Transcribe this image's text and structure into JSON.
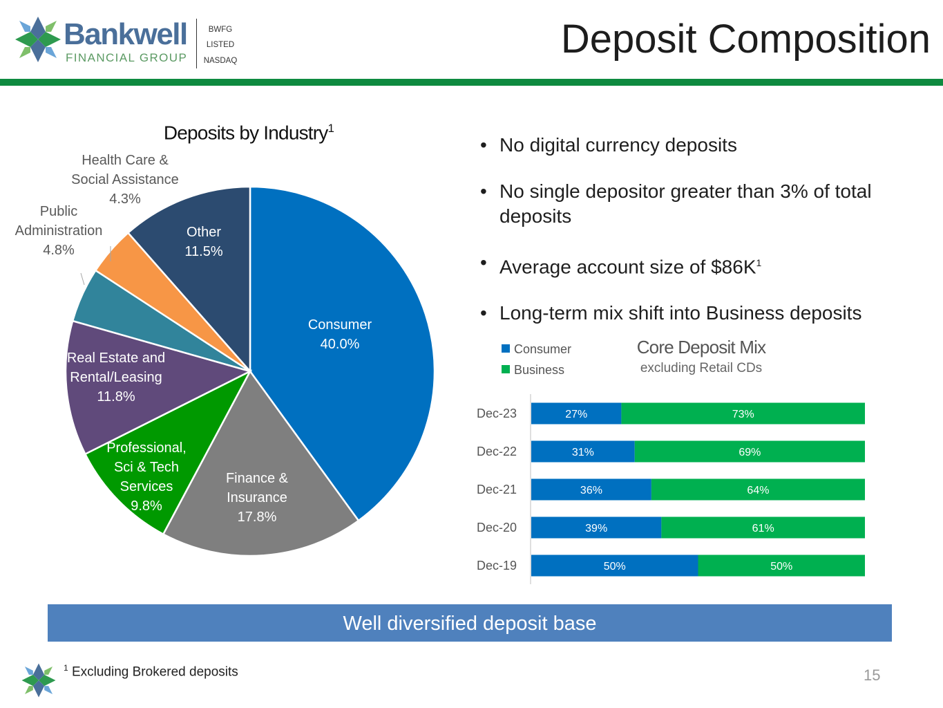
{
  "brand": {
    "name": "Bankwell",
    "subtitle": "FINANCIAL GROUP",
    "ticker_lines": [
      "BWFG",
      "LISTED",
      "NASDAQ"
    ],
    "colors": {
      "blue": "#4a6f9a",
      "green": "#5b9a63",
      "rule": "#0e8a3f"
    }
  },
  "page": {
    "title": "Deposit Composition",
    "banner": "Well diversified deposit base",
    "footnote_marker": "1",
    "footnote": "Excluding Brokered deposits",
    "page_number": "15"
  },
  "bullets": [
    "No digital currency deposits",
    "No single depositor greater than 3% of total deposits",
    "Average account size of $86K",
    "Long-term mix shift into Business deposits"
  ],
  "bullet_superscript": "1",
  "chart_data": [
    {
      "type": "pie",
      "title": "Deposits by Industry",
      "title_superscript": "1",
      "slices": [
        {
          "label": [
            "Consumer",
            "40.0%"
          ],
          "value": 40.0,
          "color": "#0070c0",
          "label_color": "#ffffff"
        },
        {
          "label": [
            "Finance &",
            "Insurance",
            "17.8%"
          ],
          "value": 17.8,
          "color": "#7f7f7f",
          "label_color": "#ffffff"
        },
        {
          "label": [
            "Professional,",
            "Sci & Tech",
            "Services",
            "9.8%"
          ],
          "value": 9.8,
          "color": "#009900",
          "label_color": "#ffffff"
        },
        {
          "label": [
            "Real Estate and",
            "Rental/Leasing",
            "11.8%"
          ],
          "value": 11.8,
          "color": "#604a7b",
          "label_color": "#ffffff"
        },
        {
          "label": [
            "Public",
            "Administration",
            "4.8%"
          ],
          "value": 4.8,
          "color": "#31849b",
          "label_color": "#595959"
        },
        {
          "label": [
            "Health Care &",
            "Social Assistance",
            "4.3%"
          ],
          "value": 4.3,
          "color": "#f79646",
          "label_color": "#595959"
        },
        {
          "label": [
            "Other",
            "11.5%"
          ],
          "value": 11.5,
          "color": "#2c4b70",
          "label_color": "#ffffff"
        }
      ]
    },
    {
      "type": "bar",
      "orientation": "horizontal",
      "stacked": true,
      "title": "Core Deposit Mix",
      "subtitle": "excluding Retail CDs",
      "legend_position": "top-left",
      "categories": [
        "Dec-23",
        "Dec-22",
        "Dec-21",
        "Dec-20",
        "Dec-19"
      ],
      "series": [
        {
          "name": "Consumer",
          "color": "#0070c0",
          "values": [
            27,
            31,
            36,
            39,
            50
          ],
          "labels": [
            "27%",
            "31%",
            "36%",
            "39%",
            "50%"
          ]
        },
        {
          "name": "Business",
          "color": "#00b050",
          "values": [
            73,
            69,
            64,
            61,
            50
          ],
          "labels": [
            "73%",
            "69%",
            "64%",
            "61%",
            "50%"
          ]
        }
      ],
      "xlim": [
        0,
        100
      ]
    }
  ]
}
